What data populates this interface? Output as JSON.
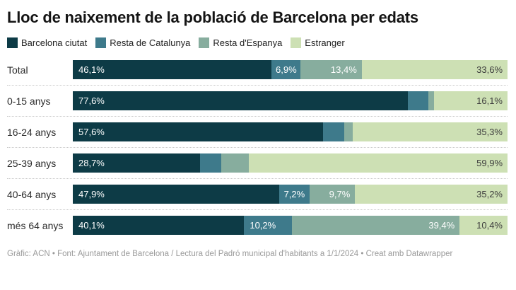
{
  "title": "Lloc de naixement de la població de Barcelona per edats",
  "colors": {
    "barcelona_ciutat": "#0d3b46",
    "resta_catalunya": "#3e7a8b",
    "resta_espanya": "#87ad9e",
    "estranger": "#cde0b4",
    "label_on_dark": "#ffffff",
    "label_on_light": "#3d3d3d",
    "separator": "#c9c9c9",
    "footer_text": "#9a9a9a"
  },
  "legend": [
    {
      "label": "Barcelona ciutat",
      "color": "#0d3b46"
    },
    {
      "label": "Resta de Catalunya",
      "color": "#3e7a8b"
    },
    {
      "label": "Resta d'Espanya",
      "color": "#87ad9e"
    },
    {
      "label": "Estranger",
      "color": "#cde0b4"
    }
  ],
  "chart_data": {
    "type": "bar",
    "stacked": true,
    "orientation": "horizontal",
    "unit": "%",
    "xlim": [
      0,
      100
    ],
    "grid": false,
    "legend_position": "top",
    "title": "Lloc de naixement de la població de Barcelona per edats",
    "categories": [
      "Total",
      "0-15 anys",
      "16-24 anys",
      "25-39 anys",
      "40-64 anys",
      "més 64 anys"
    ],
    "series": [
      {
        "name": "Barcelona ciutat",
        "values": [
          46.1,
          77.6,
          57.6,
          28.7,
          47.9,
          40.1
        ]
      },
      {
        "name": "Resta de Catalunya",
        "values": [
          6.9,
          4.9,
          5.1,
          4.9,
          7.2,
          10.2
        ]
      },
      {
        "name": "Resta d'Espanya",
        "values": [
          13.4,
          1.4,
          2.0,
          6.5,
          9.7,
          39.4
        ]
      },
      {
        "name": "Estranger",
        "values": [
          33.6,
          16.1,
          35.3,
          59.9,
          35.2,
          10.4
        ]
      }
    ],
    "note": "Unlabeled small segments (rows 0-15, 16-24, 25-39 for Resta de Catalunya / Resta d'Espanya) estimated from bar pixel widths"
  },
  "rows": [
    {
      "label": "Total",
      "segments": [
        {
          "pct": 46.1,
          "text": "46,1%",
          "align": "left",
          "light": true
        },
        {
          "pct": 6.9,
          "text": "6,9%",
          "align": "center",
          "light": true
        },
        {
          "pct": 13.4,
          "text": "13,4%",
          "align": "right",
          "light": true
        },
        {
          "pct": 33.6,
          "text": "33,6%",
          "align": "right",
          "light": false
        }
      ]
    },
    {
      "label": "0-15 anys",
      "segments": [
        {
          "pct": 77.6,
          "text": "77,6%",
          "align": "left",
          "light": true
        },
        {
          "pct": 4.9,
          "text": "",
          "align": "center",
          "light": true
        },
        {
          "pct": 1.4,
          "text": "",
          "align": "center",
          "light": true
        },
        {
          "pct": 16.1,
          "text": "16,1%",
          "align": "right",
          "light": false
        }
      ]
    },
    {
      "label": "16-24 anys",
      "segments": [
        {
          "pct": 57.6,
          "text": "57,6%",
          "align": "left",
          "light": true
        },
        {
          "pct": 5.1,
          "text": "",
          "align": "center",
          "light": true
        },
        {
          "pct": 2.0,
          "text": "",
          "align": "center",
          "light": true
        },
        {
          "pct": 35.3,
          "text": "35,3%",
          "align": "right",
          "light": false
        }
      ]
    },
    {
      "label": "25-39 anys",
      "segments": [
        {
          "pct": 28.7,
          "text": "28,7%",
          "align": "left",
          "light": true
        },
        {
          "pct": 4.9,
          "text": "",
          "align": "center",
          "light": true
        },
        {
          "pct": 6.5,
          "text": "",
          "align": "center",
          "light": true
        },
        {
          "pct": 59.9,
          "text": "59,9%",
          "align": "right",
          "light": false
        }
      ]
    },
    {
      "label": "40-64 anys",
      "segments": [
        {
          "pct": 47.9,
          "text": "47,9%",
          "align": "left",
          "light": true
        },
        {
          "pct": 7.2,
          "text": "7,2%",
          "align": "center",
          "light": true
        },
        {
          "pct": 9.7,
          "text": "9,7%",
          "align": "right",
          "light": true
        },
        {
          "pct": 35.2,
          "text": "35,2%",
          "align": "right",
          "light": false
        }
      ]
    },
    {
      "label": "més 64 anys",
      "segments": [
        {
          "pct": 40.1,
          "text": "40,1%",
          "align": "left",
          "light": true
        },
        {
          "pct": 10.2,
          "text": "10,2%",
          "align": "left",
          "light": true
        },
        {
          "pct": 39.4,
          "text": "39,4%",
          "align": "right",
          "light": true
        },
        {
          "pct": 10.4,
          "text": "10,4%",
          "align": "right",
          "light": false
        }
      ]
    }
  ],
  "footer": {
    "prefix": "Gràfic: ACN • Font: Ajuntament de Barcelona / Lectura del Padró municipal d'habitants a 1/1/2024  • Creat amb ",
    "link": "Datawrapper"
  }
}
